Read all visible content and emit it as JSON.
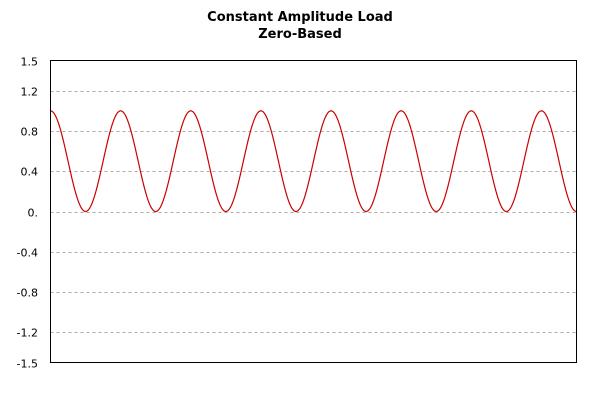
{
  "chart_data": {
    "type": "line",
    "title": "Constant Amplitude Load",
    "subtitle": "Zero-Based",
    "xlabel": "",
    "ylabel": "",
    "ylim": [
      -1.5,
      1.5
    ],
    "y_ticks": [
      1.5,
      1.2,
      0.8,
      0.4,
      0.0,
      -0.4,
      -0.8,
      -1.2,
      -1.5
    ],
    "y_tick_labels": [
      "1.5",
      "1.2",
      "0.8",
      "0.4",
      "0.",
      "-0.4",
      "-0.8",
      "-1.2",
      "-1.5"
    ],
    "grid": true,
    "legend": "none",
    "series": [
      {
        "color": "#cc0000",
        "waveform": "cosine",
        "min": 0.0,
        "max": 1.0,
        "cycles": 7.5,
        "start_phase": "peak"
      }
    ],
    "colors": {
      "line": "#cc0000",
      "grid": "#aaaaaa",
      "frame": "#000000"
    }
  }
}
